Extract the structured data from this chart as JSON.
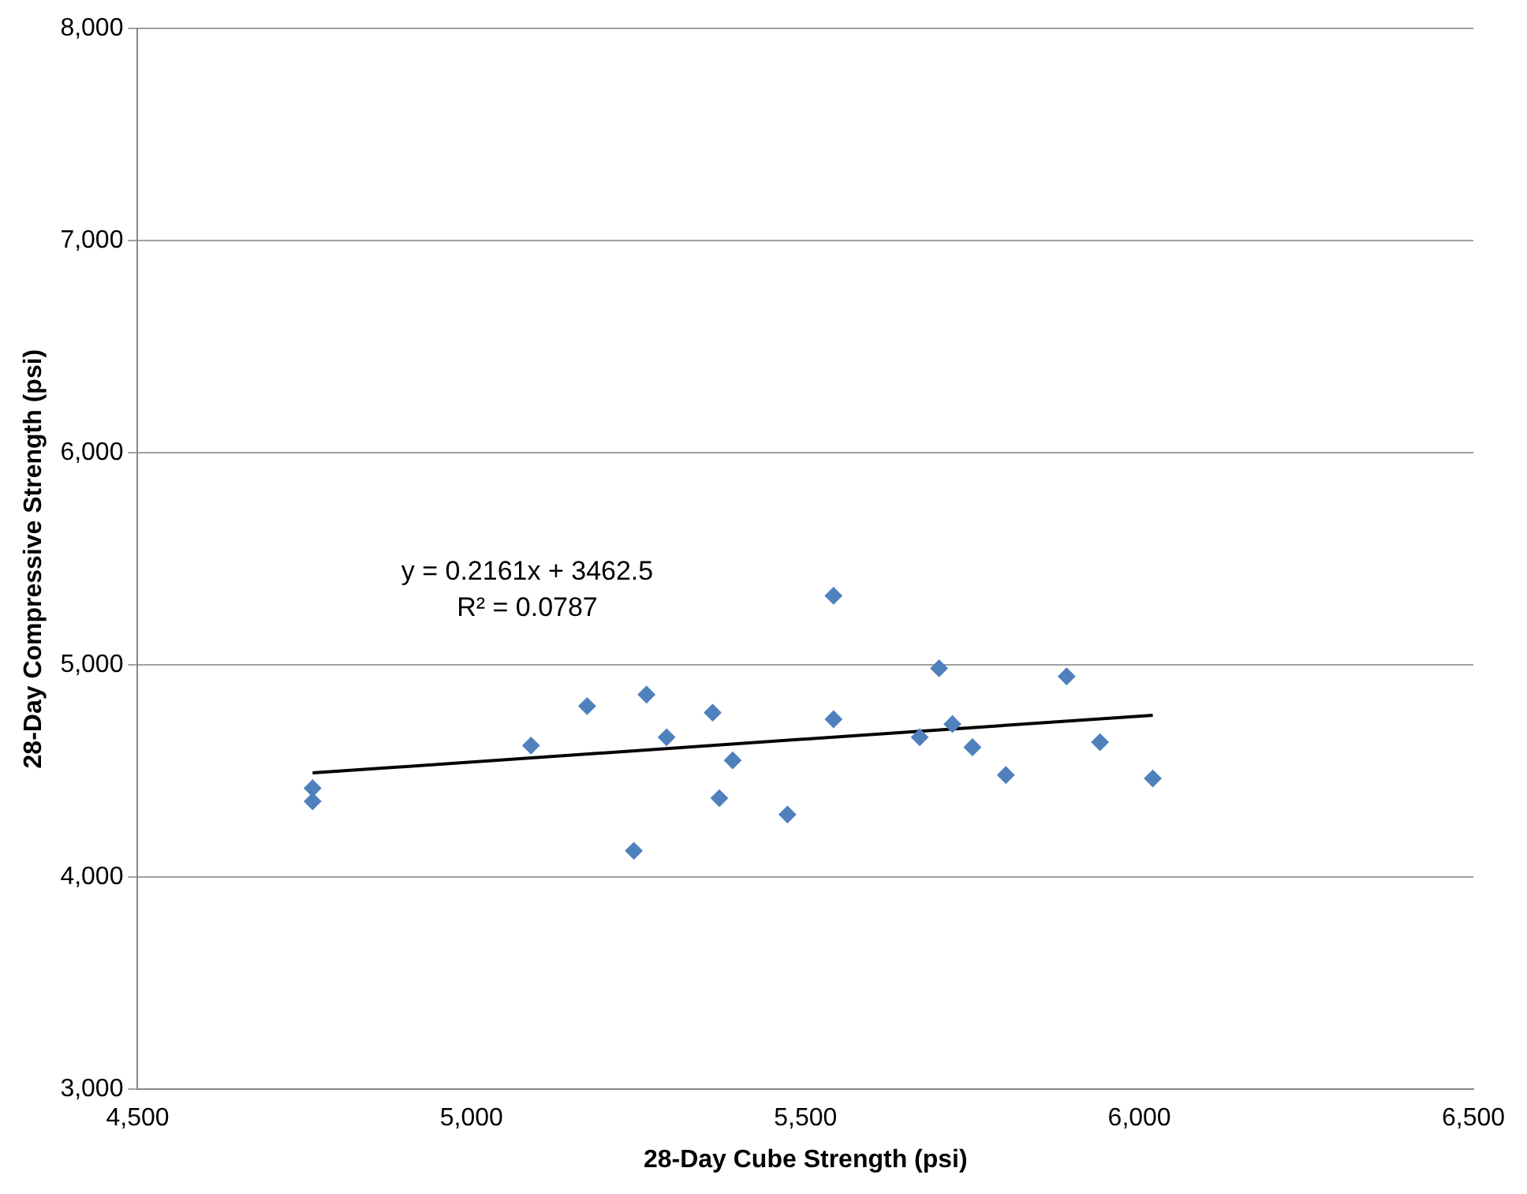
{
  "chart_data": {
    "type": "scatter",
    "xlabel": "28-Day Cube Strength (psi)",
    "ylabel": "28-Day Compressive Strength (psi)",
    "xlim": [
      4500,
      6500
    ],
    "xticks": [
      {
        "value": 4500,
        "label": "4,500"
      },
      {
        "value": 5000,
        "label": "5,000"
      },
      {
        "value": 5500,
        "label": "5,500"
      },
      {
        "value": 6000,
        "label": "6,000"
      },
      {
        "value": 6500,
        "label": "6,500"
      }
    ],
    "ylim": [
      3000,
      8000
    ],
    "yticks": [
      {
        "value": 3000,
        "label": "3,000"
      },
      {
        "value": 4000,
        "label": "4,000"
      },
      {
        "value": 5000,
        "label": "5,000"
      },
      {
        "value": 6000,
        "label": "6,000"
      },
      {
        "value": 7000,
        "label": "7,000"
      },
      {
        "value": 8000,
        "label": "8,000"
      }
    ],
    "grid": "y",
    "legend": false,
    "series": [
      {
        "marker": "diamond",
        "color": "#4f81bd",
        "x": [
          4762,
          4762,
          5089,
          5173,
          5262,
          5292,
          5361,
          5391,
          5371,
          5243,
          5473,
          5542,
          5542,
          5700,
          5671,
          5720,
          5750,
          5800,
          5891,
          5941,
          6020
        ],
        "values": [
          4419,
          4357,
          4620,
          4806,
          4860,
          4659,
          4775,
          4550,
          4372,
          4124,
          4295,
          4744,
          5326,
          4984,
          4659,
          4721,
          4612,
          4481,
          4946,
          4636,
          4465
        ]
      },
      {
        "type": "line",
        "marker": "none",
        "color": "#000000",
        "x": [
          4762,
          6020
        ],
        "values": [
          4491,
          4763
        ]
      }
    ],
    "annotations": [
      "y = 0.2161x + 3462.5",
      "R² = 0.0787"
    ]
  }
}
